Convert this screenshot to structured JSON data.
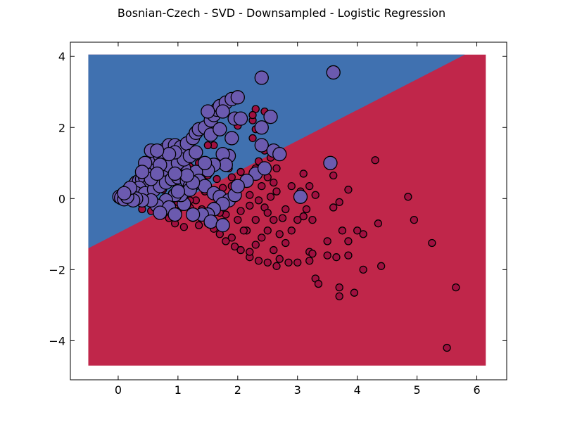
{
  "chart_data": {
    "type": "scatter",
    "title": "Bosnian-Czech - SVD - Downsampled - Logistic Regression",
    "xlabel": "",
    "ylabel": "",
    "xlim": [
      -0.8,
      6.5
    ],
    "ylim": [
      -5.1,
      4.4
    ],
    "x_ticks": [
      0,
      1,
      2,
      3,
      4,
      5,
      6
    ],
    "y_ticks": [
      4,
      2,
      0,
      -2,
      -4
    ],
    "x_tick_labels": [
      "0",
      "1",
      "2",
      "3",
      "4",
      "5",
      "6"
    ],
    "y_tick_labels": [
      "4",
      "2",
      "0",
      "−2",
      "−4"
    ],
    "grid": false,
    "decision_regions": {
      "x_range": [
        -0.5,
        6.15
      ],
      "y_range": [
        -4.7,
        4.05
      ],
      "boundary": [
        [
          -0.5,
          -1.4
        ],
        [
          5.8,
          4.05
        ]
      ],
      "upper_color": "#4071b0",
      "lower_color": "#c0264a"
    },
    "series": [
      {
        "color": "#a01040",
        "marker_size": "small",
        "points": [
          [
            3.1,
            0.7
          ],
          [
            3.6,
            0.65
          ],
          [
            3.2,
            0.35
          ],
          [
            2.9,
            0.35
          ],
          [
            3.05,
            0.2
          ],
          [
            3.3,
            0.1
          ],
          [
            3.7,
            -0.1
          ],
          [
            3.6,
            -0.25
          ],
          [
            3.85,
            0.25
          ],
          [
            4.3,
            1.08
          ],
          [
            4.85,
            0.05
          ],
          [
            4.95,
            -0.6
          ],
          [
            5.25,
            -1.25
          ],
          [
            5.65,
            -2.5
          ],
          [
            5.5,
            -4.2
          ],
          [
            4.4,
            -1.9
          ],
          [
            4.1,
            -2.0
          ],
          [
            3.95,
            -2.65
          ],
          [
            3.7,
            -2.5
          ],
          [
            3.7,
            -2.75
          ],
          [
            3.3,
            -2.25
          ],
          [
            3.35,
            -2.4
          ],
          [
            3.5,
            -1.6
          ],
          [
            3.65,
            -1.65
          ],
          [
            3.85,
            -1.6
          ],
          [
            3.85,
            -1.2
          ],
          [
            3.75,
            -0.9
          ],
          [
            4.0,
            -0.9
          ],
          [
            4.1,
            -1.0
          ],
          [
            4.35,
            -0.7
          ],
          [
            3.5,
            -1.2
          ],
          [
            3.2,
            -1.5
          ],
          [
            3.25,
            -1.55
          ],
          [
            3.2,
            -1.75
          ],
          [
            3.0,
            -1.8
          ],
          [
            2.85,
            -1.8
          ],
          [
            2.7,
            -1.7
          ],
          [
            2.65,
            -1.9
          ],
          [
            2.5,
            -1.8
          ],
          [
            2.35,
            -1.75
          ],
          [
            2.2,
            -1.65
          ],
          [
            3.1,
            -0.5
          ],
          [
            3.25,
            -0.6
          ],
          [
            3.15,
            -0.3
          ],
          [
            3.0,
            -0.6
          ],
          [
            2.8,
            -0.3
          ],
          [
            2.75,
            -0.55
          ],
          [
            2.9,
            -0.9
          ],
          [
            2.7,
            -1.0
          ],
          [
            2.6,
            -0.6
          ],
          [
            2.5,
            -0.9
          ],
          [
            2.45,
            -0.25
          ],
          [
            2.55,
            0.05
          ],
          [
            2.4,
            0.35
          ],
          [
            2.2,
            -0.2
          ],
          [
            2.05,
            -0.35
          ],
          [
            2.3,
            -0.6
          ],
          [
            2.15,
            -0.9
          ],
          [
            2.4,
            -1.1
          ],
          [
            2.3,
            -1.3
          ],
          [
            2.2,
            -1.5
          ],
          [
            2.05,
            -1.45
          ],
          [
            1.95,
            -1.35
          ],
          [
            1.9,
            -1.1
          ],
          [
            1.8,
            -1.2
          ],
          [
            1.7,
            -1.0
          ],
          [
            1.6,
            -0.85
          ],
          [
            1.5,
            -0.7
          ],
          [
            1.35,
            -0.75
          ],
          [
            1.25,
            -0.55
          ],
          [
            1.1,
            -0.8
          ],
          [
            0.95,
            -0.7
          ],
          [
            0.85,
            -0.55
          ],
          [
            0.7,
            -0.45
          ],
          [
            0.55,
            -0.35
          ],
          [
            0.4,
            -0.3
          ],
          [
            0.6,
            -0.2
          ],
          [
            0.8,
            -0.25
          ],
          [
            1.0,
            -0.35
          ],
          [
            1.2,
            -0.25
          ],
          [
            1.4,
            -0.3
          ],
          [
            1.6,
            -0.2
          ],
          [
            1.8,
            -0.45
          ],
          [
            2.0,
            -0.6
          ],
          [
            1.75,
            -0.7
          ],
          [
            1.55,
            -0.55
          ],
          [
            2.1,
            -0.9
          ],
          [
            2.6,
            -1.45
          ],
          [
            2.8,
            -1.25
          ],
          [
            2.65,
            0.2
          ],
          [
            2.5,
            -0.4
          ],
          [
            1.9,
            0.35
          ],
          [
            2.1,
            0.5
          ],
          [
            2.3,
            0.85
          ],
          [
            2.35,
            1.05
          ],
          [
            2.45,
            1.35
          ],
          [
            2.25,
            1.7
          ],
          [
            2.3,
            1.95
          ],
          [
            2.25,
            2.2
          ],
          [
            2.3,
            2.52
          ],
          [
            2.45,
            2.45
          ],
          [
            2.25,
            2.35
          ],
          [
            2.0,
            2.05
          ],
          [
            1.6,
            1.5
          ],
          [
            1.5,
            1.5
          ],
          [
            1.75,
            1.1
          ],
          [
            1.85,
            0.85
          ],
          [
            2.05,
            0.75
          ],
          [
            2.25,
            0.7
          ],
          [
            2.65,
            0.85
          ],
          [
            2.55,
            1.15
          ],
          [
            1.35,
            1.0
          ],
          [
            1.2,
            0.9
          ],
          [
            1.5,
            0.65
          ],
          [
            1.65,
            0.55
          ],
          [
            1.45,
            0.2
          ],
          [
            1.3,
            -0.05
          ],
          [
            1.05,
            0.05
          ],
          [
            0.9,
            0.15
          ],
          [
            0.75,
            0.25
          ],
          [
            0.55,
            0.65
          ],
          [
            0.45,
            0.85
          ],
          [
            0.3,
            0.4
          ],
          [
            0.4,
            0.1
          ],
          [
            0.85,
            1.0
          ],
          [
            0.85,
            1.15
          ],
          [
            1.95,
            0.05
          ],
          [
            2.2,
            0.1
          ],
          [
            2.35,
            -0.05
          ],
          [
            1.7,
            -0.4
          ],
          [
            1.2,
            -0.05
          ],
          [
            1.0,
            -0.1
          ],
          [
            1.9,
            0.6
          ],
          [
            2.6,
            0.45
          ],
          [
            2.5,
            0.6
          ],
          [
            1.45,
            0.8
          ],
          [
            1.75,
            0.3
          ]
        ]
      },
      {
        "color": "#6b5aaf",
        "marker_size": "large",
        "points": [
          [
            0.02,
            0.05
          ],
          [
            0.08,
            0.1
          ],
          [
            0.15,
            0.2
          ],
          [
            0.2,
            0.3
          ],
          [
            0.25,
            0.35
          ],
          [
            0.3,
            0.45
          ],
          [
            0.35,
            0.5
          ],
          [
            0.4,
            0.55
          ],
          [
            0.45,
            0.6
          ],
          [
            0.5,
            0.8
          ],
          [
            0.55,
            0.9
          ],
          [
            0.6,
            1.0
          ],
          [
            0.65,
            1.1
          ],
          [
            0.7,
            1.2
          ],
          [
            0.75,
            1.3
          ],
          [
            0.8,
            1.4
          ],
          [
            0.85,
            1.5
          ],
          [
            0.95,
            1.5
          ],
          [
            1.05,
            1.45
          ],
          [
            1.15,
            1.55
          ],
          [
            1.25,
            1.7
          ],
          [
            1.3,
            1.85
          ],
          [
            1.35,
            1.95
          ],
          [
            1.45,
            2.0
          ],
          [
            1.55,
            2.2
          ],
          [
            1.6,
            2.35
          ],
          [
            1.65,
            2.5
          ],
          [
            1.7,
            2.6
          ],
          [
            1.8,
            2.7
          ],
          [
            1.9,
            2.8
          ],
          [
            2.0,
            2.85
          ],
          [
            1.75,
            2.45
          ],
          [
            1.5,
            2.45
          ],
          [
            1.55,
            1.8
          ],
          [
            1.7,
            1.95
          ],
          [
            1.95,
            2.25
          ],
          [
            2.05,
            2.25
          ],
          [
            1.9,
            1.7
          ],
          [
            1.85,
            1.2
          ],
          [
            1.75,
            1.25
          ],
          [
            1.8,
            0.95
          ],
          [
            1.6,
            0.95
          ],
          [
            1.5,
            0.8
          ],
          [
            1.3,
            0.75
          ],
          [
            1.1,
            0.85
          ],
          [
            0.95,
            0.8
          ],
          [
            0.85,
            0.9
          ],
          [
            0.75,
            0.6
          ],
          [
            0.6,
            0.5
          ],
          [
            0.5,
            0.35
          ],
          [
            0.35,
            0.3
          ],
          [
            0.2,
            0.1
          ],
          [
            0.05,
            0.02
          ],
          [
            0.1,
            -0.02
          ],
          [
            0.25,
            0.05
          ],
          [
            0.3,
            0.15
          ],
          [
            0.45,
            0.15
          ],
          [
            0.6,
            0.25
          ],
          [
            0.7,
            0.35
          ],
          [
            0.8,
            0.45
          ],
          [
            0.9,
            0.55
          ],
          [
            1.0,
            0.6
          ],
          [
            1.15,
            0.5
          ],
          [
            1.2,
            0.35
          ],
          [
            1.25,
            0.4
          ],
          [
            1.35,
            0.5
          ],
          [
            1.45,
            0.35
          ],
          [
            1.6,
            0.15
          ],
          [
            1.7,
            0.05
          ],
          [
            1.85,
            -0.05
          ],
          [
            1.95,
            0.1
          ],
          [
            1.75,
            -0.15
          ],
          [
            1.6,
            -0.3
          ],
          [
            1.5,
            -0.45
          ],
          [
            1.4,
            -0.45
          ],
          [
            1.25,
            -0.45
          ],
          [
            1.1,
            -0.15
          ],
          [
            1.05,
            0.1
          ],
          [
            0.95,
            0.1
          ],
          [
            0.8,
            -0.05
          ],
          [
            0.65,
            -0.2
          ],
          [
            0.55,
            -0.05
          ],
          [
            0.4,
            -0.05
          ],
          [
            0.3,
            0.0
          ],
          [
            0.25,
            -0.05
          ],
          [
            0.15,
            0.05
          ],
          [
            0.85,
            -0.25
          ],
          [
            0.95,
            -0.45
          ],
          [
            0.7,
            -0.4
          ],
          [
            1.55,
            -0.65
          ],
          [
            1.75,
            -0.75
          ],
          [
            1.2,
            0.25
          ],
          [
            1.0,
            1.0
          ],
          [
            1.1,
            1.1
          ],
          [
            1.2,
            1.2
          ],
          [
            1.3,
            1.3
          ],
          [
            0.95,
            1.3
          ],
          [
            0.85,
            1.25
          ],
          [
            0.7,
            0.95
          ],
          [
            0.55,
            1.35
          ],
          [
            0.65,
            1.35
          ],
          [
            0.45,
            1.0
          ],
          [
            2.4,
            3.4
          ],
          [
            3.6,
            3.55
          ],
          [
            2.55,
            2.3
          ],
          [
            2.4,
            2.0
          ],
          [
            2.4,
            1.5
          ],
          [
            2.6,
            1.35
          ],
          [
            2.7,
            1.25
          ],
          [
            2.3,
            0.7
          ],
          [
            2.45,
            0.85
          ],
          [
            3.55,
            1.0
          ],
          [
            3.05,
            0.05
          ],
          [
            2.15,
            0.5
          ],
          [
            2.0,
            0.35
          ],
          [
            1.25,
            0.45
          ],
          [
            0.2,
            0.3
          ],
          [
            0.1,
            0.15
          ],
          [
            0.55,
            0.55
          ],
          [
            1.0,
            0.2
          ],
          [
            1.45,
            1.0
          ],
          [
            1.15,
            0.65
          ],
          [
            0.95,
            0.7
          ],
          [
            0.65,
            0.7
          ],
          [
            0.4,
            0.75
          ]
        ]
      }
    ]
  }
}
